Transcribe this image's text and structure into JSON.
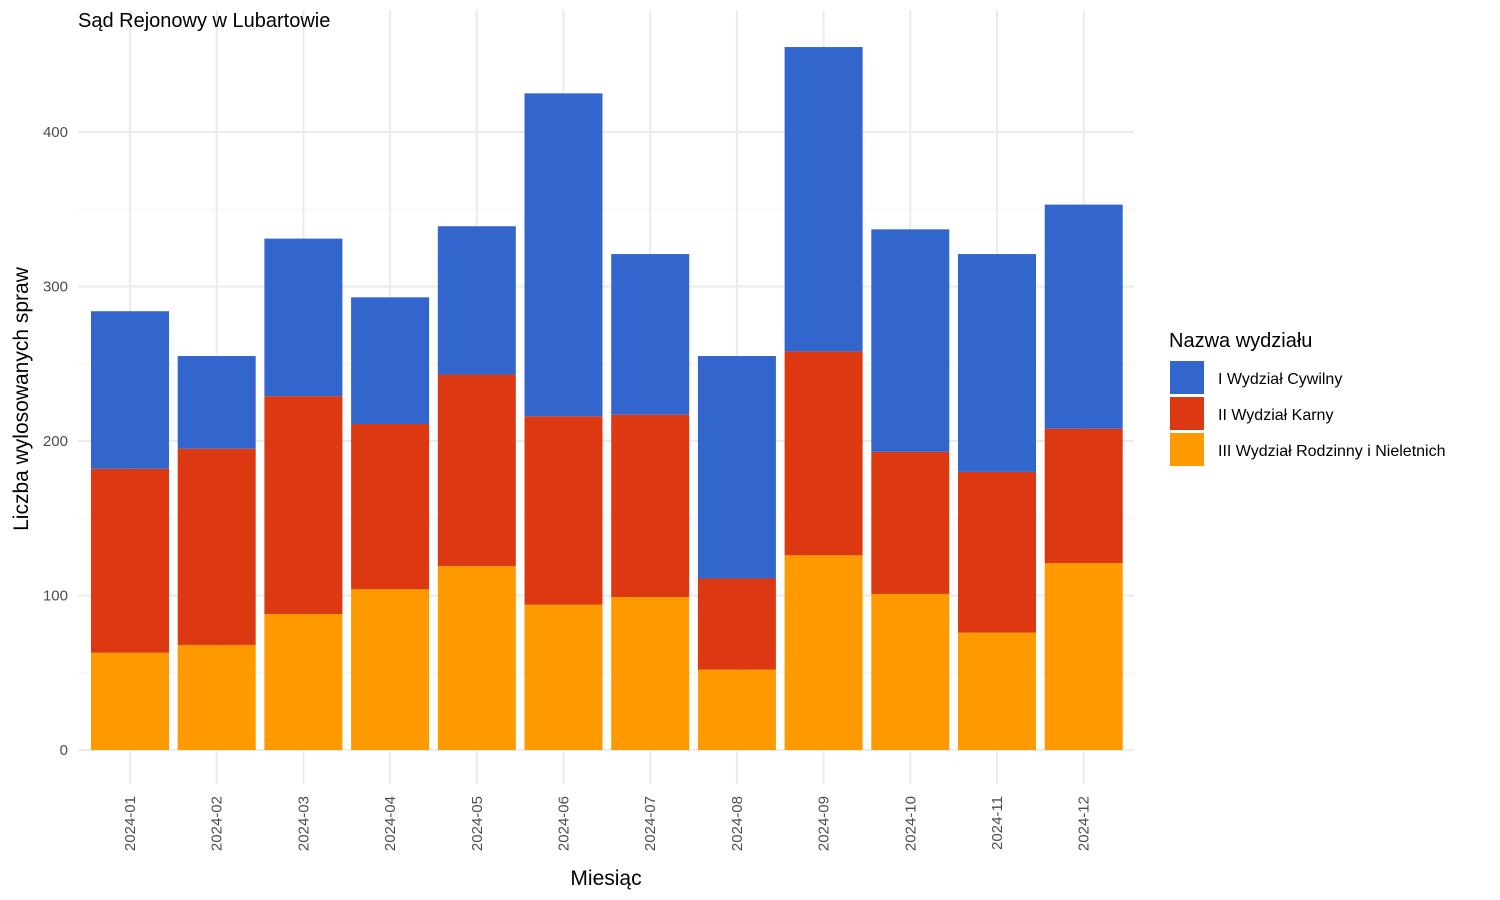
{
  "chart_data": {
    "type": "bar",
    "stacked": true,
    "title": "Sąd Rejonowy w Lubartowie",
    "xlabel": "Miesiąc",
    "ylabel": "Liczba wylosowanych spraw",
    "ylim": [
      0,
      470
    ],
    "yticks": [
      0,
      100,
      200,
      300,
      400
    ],
    "grid": true,
    "legend": {
      "title": "Nazwa wydziału",
      "position": "right"
    },
    "categories": [
      "2024-01",
      "2024-02",
      "2024-03",
      "2024-04",
      "2024-05",
      "2024-06",
      "2024-07",
      "2024-08",
      "2024-09",
      "2024-10",
      "2024-11",
      "2024-12"
    ],
    "series": [
      {
        "name": "III Wydział Rodzinny i Nieletnich",
        "color": "#ff9900",
        "values": [
          63,
          68,
          88,
          104,
          119,
          94,
          99,
          52,
          126,
          101,
          76,
          121
        ]
      },
      {
        "name": "II Wydział Karny",
        "color": "#dc3912",
        "values": [
          119,
          127,
          141,
          107,
          124,
          122,
          118,
          59,
          132,
          92,
          104,
          87
        ]
      },
      {
        "name": "I Wydział Cywilny",
        "color": "#3366cc",
        "values": [
          102,
          60,
          102,
          82,
          96,
          209,
          104,
          144,
          197,
          144,
          141,
          145
        ]
      }
    ],
    "legend_order": [
      "I Wydział Cywilny",
      "II Wydział Karny",
      "III Wydział Rodzinny i Nieletnich"
    ]
  }
}
